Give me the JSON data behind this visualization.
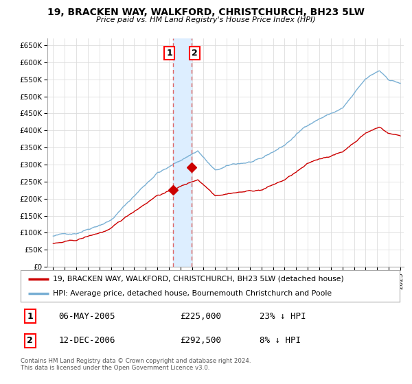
{
  "title": "19, BRACKEN WAY, WALKFORD, CHRISTCHURCH, BH23 5LW",
  "subtitle": "Price paid vs. HM Land Registry's House Price Index (HPI)",
  "ylim": [
    0,
    670000
  ],
  "xlim_start": 1994.5,
  "xlim_end": 2025.3,
  "legend_house": "19, BRACKEN WAY, WALKFORD, CHRISTCHURCH, BH23 5LW (detached house)",
  "legend_hpi": "HPI: Average price, detached house, Bournemouth Christchurch and Poole",
  "transaction_1_date": "06-MAY-2005",
  "transaction_1_price": "£225,000",
  "transaction_1_hpi": "23% ↓ HPI",
  "transaction_1_x": 2005.35,
  "transaction_1_y": 225000,
  "transaction_2_date": "12-DEC-2006",
  "transaction_2_price": "£292,500",
  "transaction_2_hpi": "8% ↓ HPI",
  "transaction_2_x": 2006.95,
  "transaction_2_y": 292500,
  "footnote": "Contains HM Land Registry data © Crown copyright and database right 2024.\nThis data is licensed under the Open Government Licence v3.0.",
  "line_color_house": "#cc0000",
  "line_color_hpi": "#7ab0d4",
  "shade_color": "#ddeeff",
  "marker_color": "#cc0000",
  "vline_color": "#dd6666",
  "grid_color": "#dddddd",
  "background_color": "#ffffff"
}
